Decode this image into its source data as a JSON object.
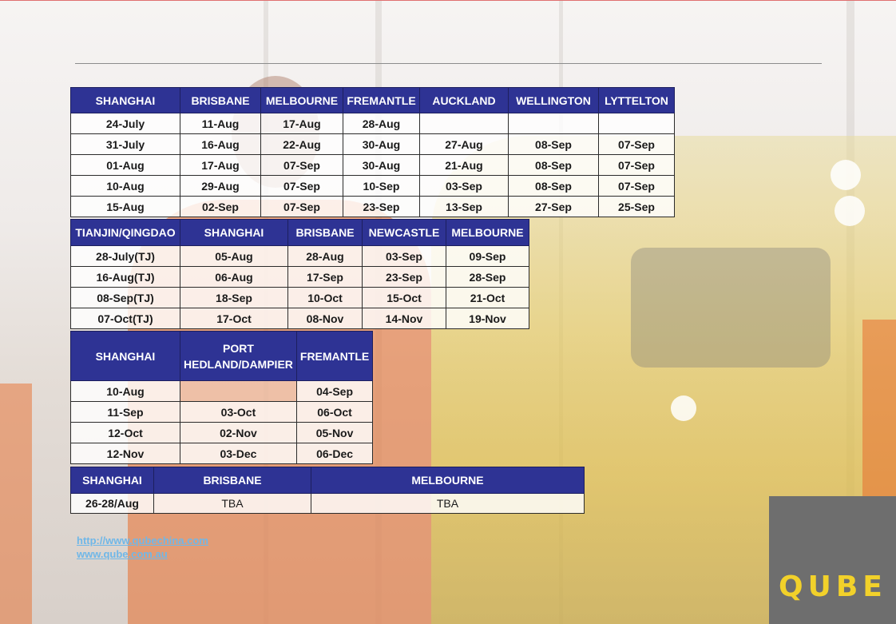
{
  "brand": {
    "logo_text": "QUBE",
    "header_color": "#2e3394",
    "logo_color": "#f2d12a"
  },
  "table1": {
    "headers": [
      "SHANGHAI",
      "BRISBANE",
      "MELBOURNE",
      "FREMANTLE",
      "AUCKLAND",
      "WELLINGTON",
      "LYTTELTON"
    ],
    "rows": [
      [
        "24-July",
        "11-Aug",
        "17-Aug",
        "28-Aug",
        "",
        "",
        ""
      ],
      [
        "31-July",
        "16-Aug",
        "22-Aug",
        "30-Aug",
        "27-Aug",
        "08-Sep",
        "07-Sep"
      ],
      [
        "01-Aug",
        "17-Aug",
        "07-Sep",
        "30-Aug",
        "21-Aug",
        "08-Sep",
        "07-Sep"
      ],
      [
        "10-Aug",
        "29-Aug",
        "07-Sep",
        "10-Sep",
        "03-Sep",
        "08-Sep",
        "07-Sep"
      ],
      [
        "15-Aug",
        "02-Sep",
        "07-Sep",
        "23-Sep",
        "13-Sep",
        "27-Sep",
        "25-Sep"
      ]
    ]
  },
  "table2": {
    "headers": [
      "TIANJIN/QINGDAO",
      "SHANGHAI",
      "BRISBANE",
      "NEWCASTLE",
      "MELBOURNE"
    ],
    "rows": [
      [
        "28-July(TJ)",
        "05-Aug",
        "28-Aug",
        "03-Sep",
        "09-Sep"
      ],
      [
        "16-Aug(TJ)",
        "06-Aug",
        "17-Sep",
        "23-Sep",
        "28-Sep"
      ],
      [
        "08-Sep(TJ)",
        "18-Sep",
        "10-Oct",
        "15-Oct",
        "21-Oct"
      ],
      [
        "07-Oct(TJ)",
        "17-Oct",
        "08-Nov",
        "14-Nov",
        "19-Nov"
      ]
    ]
  },
  "table3": {
    "headers": [
      "SHANGHAI",
      "PORT HEDLAND/DAMPIER",
      "FREMANTLE"
    ],
    "rows": [
      [
        "10-Aug",
        "",
        "04-Sep"
      ],
      [
        "11-Sep",
        "03-Oct",
        "06-Oct"
      ],
      [
        "12-Oct",
        "02-Nov",
        "05-Nov"
      ],
      [
        "12-Nov",
        "03-Dec",
        "06-Dec"
      ]
    ]
  },
  "table4": {
    "headers": [
      "SHANGHAI",
      "BRISBANE",
      "MELBOURNE"
    ],
    "rows": [
      [
        "26-28/Aug",
        "TBA",
        "TBA"
      ]
    ]
  },
  "links": [
    "http://www.qubechina.com",
    "www.qube.com.au"
  ]
}
